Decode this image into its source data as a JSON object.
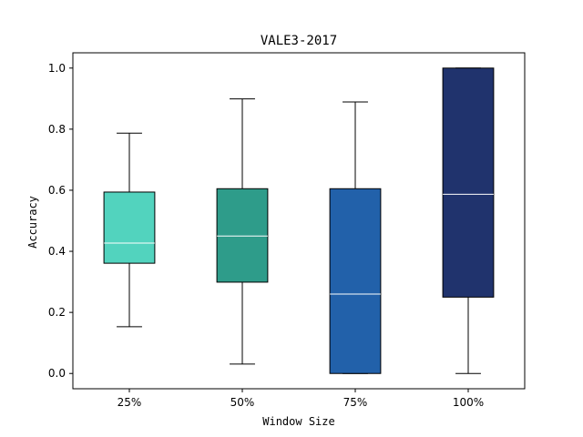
{
  "chart_data": {
    "type": "box",
    "title": "VALE3-2017",
    "xlabel": "Window Size",
    "ylabel": "Accuracy",
    "ylim": [
      -0.05,
      1.05
    ],
    "yticks": [
      "0.0",
      "0.2",
      "0.4",
      "0.6",
      "0.8",
      "1.0"
    ],
    "grid": false,
    "legend": "none",
    "categories": [
      "25%",
      "50%",
      "75%",
      "100%"
    ],
    "boxes": [
      {
        "min": 0.153,
        "q1": 0.361,
        "median": 0.427,
        "q3": 0.594,
        "max": 0.787,
        "color": "#52d3be"
      },
      {
        "min": 0.031,
        "q1": 0.299,
        "median": 0.45,
        "q3": 0.605,
        "max": 0.899,
        "color": "#2e9c8a"
      },
      {
        "min": 0.0,
        "q1": 0.0,
        "median": 0.26,
        "q3": 0.605,
        "max": 0.889,
        "color": "#2261aa"
      },
      {
        "min": 0.0,
        "q1": 0.25,
        "median": 0.587,
        "q3": 1.0,
        "max": 1.0,
        "color": "#20336d"
      }
    ]
  }
}
